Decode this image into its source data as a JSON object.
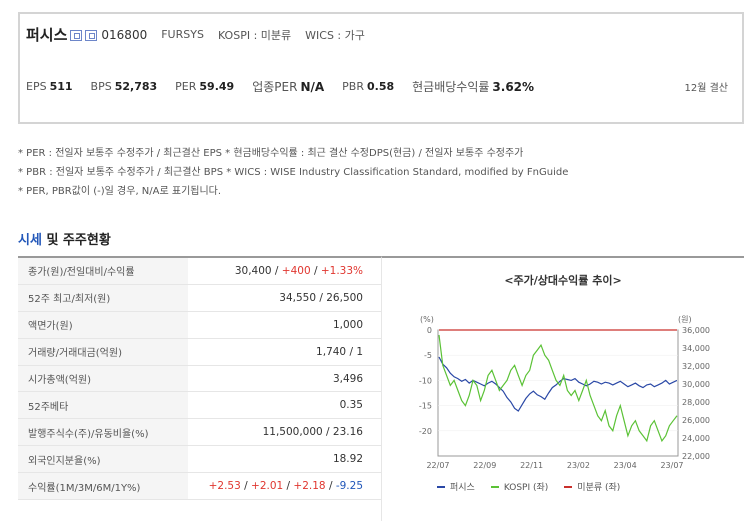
{
  "header": {
    "company_name": "퍼시스",
    "code": "016800",
    "eng_name": "FURSYS",
    "market": "KOSPI : 미분류",
    "wics": "WICS : 가구",
    "settlement": "12월 결산"
  },
  "metrics": [
    {
      "label": "EPS",
      "value": "511"
    },
    {
      "label": "BPS",
      "value": "52,783"
    },
    {
      "label": "PER",
      "value": "59.49"
    },
    {
      "label": "업종PER",
      "value": "N/A"
    },
    {
      "label": "PBR",
      "value": "0.58"
    },
    {
      "label": "현금배당수익률",
      "value": "3.62%"
    }
  ],
  "notes": [
    "* PER : 전일자 보통주 수정주가 / 최근결산 EPS * 현금배당수익률 : 최근 결산 수정DPS(현금) / 전일자 보통주 수정주가",
    "* PBR : 전일자 보통주 수정주가 / 최근결산 BPS * WICS : WISE Industry Classification Standard, modified by FnGuide",
    "* PER, PBR값이 (-)일 경우, N/A로 표기됩니다."
  ],
  "section": {
    "accent": "시세",
    "rest": " 및 주주현황"
  },
  "table": {
    "rows": [
      {
        "label": "종가(원)/전일대비/수익률",
        "value_main": "30,400 / ",
        "value_change": "+400",
        "sep": " / ",
        "value_pct": "+1.33%"
      },
      {
        "label": "52주 최고/최저(원)",
        "value": "34,550 / 26,500"
      },
      {
        "label": "액면가(원)",
        "value": "1,000"
      },
      {
        "label": "거래량/거래대금(억원)",
        "value": "1,740 / 1"
      },
      {
        "label": "시가총액(억원)",
        "value": "3,496"
      },
      {
        "label": "52주베타",
        "value": "0.35"
      },
      {
        "label": "발행주식수(주)/유동비율(%)",
        "value": "11,500,000 / 23.16"
      },
      {
        "label": "외국인지분율(%)",
        "value": "18.92"
      },
      {
        "label": "수익률(1M/3M/6M/1Y%)",
        "r1": "+2.53",
        "r2": "+2.01",
        "r3": "+2.18",
        "r4": "-9.25",
        "sep": " / "
      }
    ]
  },
  "chart_data": {
    "type": "line",
    "title": "<주가/상대수익률 추이>",
    "left_axis_label": "(%)",
    "right_axis_label": "(원)",
    "left_ticks": [
      "0",
      "-5",
      "-10",
      "-15",
      "-20"
    ],
    "left_range": [
      -25,
      0
    ],
    "right_ticks": [
      "36,000",
      "34,000",
      "32,000",
      "30,000",
      "28,000",
      "26,000",
      "24,000",
      "22,000"
    ],
    "right_range": [
      22000,
      36000
    ],
    "x_ticks": [
      "22/07",
      "22/09",
      "22/11",
      "23/02",
      "23/04",
      "23/07"
    ],
    "colors": {
      "fursys": "#2a48a6",
      "kospi": "#5bc236",
      "unclassified": "#c9302c"
    },
    "series": [
      {
        "name": "퍼시스",
        "axis": "right",
        "color": "#2a48a6",
        "values": [
          33000,
          32200,
          31800,
          31200,
          30800,
          30600,
          30300,
          30500,
          30100,
          30400,
          30200,
          30000,
          29800,
          30100,
          30300,
          30000,
          29600,
          29200,
          28500,
          28000,
          27300,
          27000,
          27700,
          28400,
          28900,
          29200,
          28800,
          28600,
          28300,
          29000,
          29600,
          29900,
          30300,
          30600,
          30500,
          30400,
          30600,
          30200,
          30000,
          29800,
          30000,
          30300,
          30200,
          30000,
          30200,
          30100,
          29900,
          30100,
          30300,
          30000,
          29700,
          29900,
          30100,
          29800,
          29600,
          29900,
          30000,
          29700,
          29900,
          30100,
          30400,
          30000,
          30200,
          30400
        ]
      },
      {
        "name": "KOSPI",
        "axis": "left",
        "color": "#5bc236",
        "values": [
          -1,
          -7,
          -9,
          -11,
          -10,
          -12,
          -14,
          -15,
          -13,
          -10,
          -11,
          -14,
          -12,
          -9,
          -8,
          -10,
          -12,
          -11,
          -10,
          -8,
          -7,
          -9,
          -11,
          -9,
          -8,
          -5,
          -4,
          -3,
          -5,
          -6,
          -8,
          -10,
          -11,
          -9,
          -12,
          -13,
          -12,
          -14,
          -12,
          -10,
          -13,
          -15,
          -17,
          -18,
          -16,
          -19,
          -20,
          -17,
          -15,
          -18,
          -21,
          -19,
          -18,
          -20,
          -21,
          -22,
          -19,
          -18,
          -20,
          -22,
          -21,
          -19,
          -18,
          -17
        ]
      },
      {
        "name": "미분류",
        "axis": "left",
        "color": "#c9302c",
        "values": [
          0,
          0,
          0,
          0,
          0,
          0,
          0,
          0,
          0,
          0,
          0,
          0,
          0,
          0,
          0,
          0,
          0,
          0,
          0,
          0,
          0,
          0,
          0,
          0,
          0,
          0,
          0,
          0,
          0,
          0,
          0,
          0,
          0,
          0,
          0,
          0,
          0,
          0,
          0,
          0,
          0,
          0,
          0,
          0,
          0,
          0,
          0,
          0,
          0,
          0,
          0,
          0,
          0,
          0,
          0,
          0,
          0,
          0,
          0,
          0,
          0,
          0,
          0,
          0
        ]
      }
    ]
  },
  "legend": [
    {
      "label": "퍼시스",
      "color": "#2a48a6"
    },
    {
      "label": "KOSPI (좌)",
      "color": "#5bc236"
    },
    {
      "label": "미분류 (좌)",
      "color": "#c9302c"
    }
  ]
}
